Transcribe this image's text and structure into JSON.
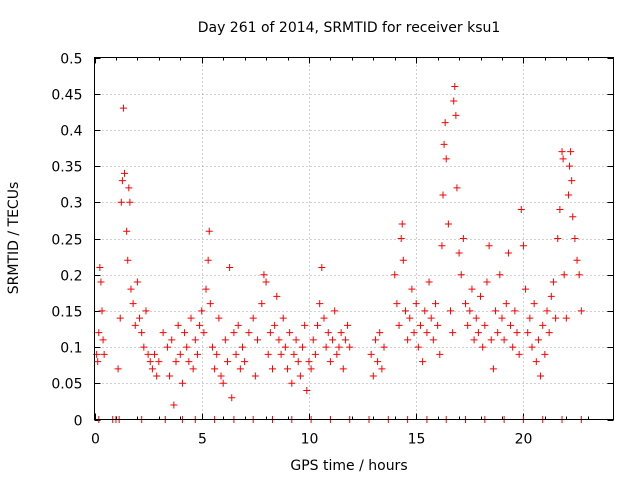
{
  "chart_data": {
    "type": "scatter",
    "title": "Day 261 of 2014, SRMTID for receiver ksu1",
    "xlabel": "GPS time / hours",
    "ylabel": "SRMTID / TECUs",
    "xlim": [
      0,
      24.2
    ],
    "ylim": [
      0,
      0.5
    ],
    "x_ticks": [
      "0",
      "5",
      "10",
      "15",
      "20"
    ],
    "y_ticks": [
      "0",
      "0.05",
      "0.1",
      "0.15",
      "0.2",
      "0.25",
      "0.3",
      "0.35",
      "0.4",
      "0.45",
      "0.5"
    ],
    "grid": true,
    "marker": "+",
    "color": "#ff0000",
    "series": [
      {
        "name": "SRMTID ksu1",
        "points": [
          [
            0.1,
            0.09
          ],
          [
            0.15,
            0.08
          ],
          [
            0.2,
            0.12
          ],
          [
            0.25,
            0.21
          ],
          [
            0.3,
            0.19
          ],
          [
            0.35,
            0.15
          ],
          [
            0.4,
            0.11
          ],
          [
            0.45,
            0.09
          ],
          [
            0.85,
            0.0
          ],
          [
            1.0,
            0.0
          ],
          [
            1.1,
            0.07
          ],
          [
            1.2,
            0.14
          ],
          [
            1.25,
            0.3
          ],
          [
            1.3,
            0.33
          ],
          [
            1.35,
            0.43
          ],
          [
            1.4,
            0.34
          ],
          [
            1.5,
            0.26
          ],
          [
            1.55,
            0.22
          ],
          [
            1.6,
            0.32
          ],
          [
            1.65,
            0.3
          ],
          [
            1.7,
            0.18
          ],
          [
            1.8,
            0.16
          ],
          [
            1.9,
            0.13
          ],
          [
            2.0,
            0.19
          ],
          [
            2.1,
            0.14
          ],
          [
            2.2,
            0.12
          ],
          [
            2.3,
            0.1
          ],
          [
            2.4,
            0.15
          ],
          [
            2.5,
            0.09
          ],
          [
            2.6,
            0.08
          ],
          [
            2.7,
            0.07
          ],
          [
            2.8,
            0.09
          ],
          [
            2.9,
            0.06
          ],
          [
            3.0,
            0.08
          ],
          [
            3.2,
            0.12
          ],
          [
            3.4,
            0.1
          ],
          [
            3.5,
            0.06
          ],
          [
            3.6,
            0.11
          ],
          [
            3.7,
            0.02
          ],
          [
            3.8,
            0.08
          ],
          [
            3.9,
            0.13
          ],
          [
            4.0,
            0.09
          ],
          [
            4.1,
            0.05
          ],
          [
            4.2,
            0.12
          ],
          [
            4.3,
            0.1
          ],
          [
            4.4,
            0.08
          ],
          [
            4.5,
            0.14
          ],
          [
            4.6,
            0.07
          ],
          [
            4.7,
            0.11
          ],
          [
            4.8,
            0.09
          ],
          [
            4.9,
            0.13
          ],
          [
            5.0,
            0.15
          ],
          [
            5.1,
            0.12
          ],
          [
            5.2,
            0.18
          ],
          [
            5.3,
            0.22
          ],
          [
            5.35,
            0.26
          ],
          [
            5.4,
            0.16
          ],
          [
            5.5,
            0.1
          ],
          [
            5.6,
            0.07
          ],
          [
            5.7,
            0.09
          ],
          [
            5.8,
            0.14
          ],
          [
            5.9,
            0.06
          ],
          [
            6.0,
            0.05
          ],
          [
            6.1,
            0.11
          ],
          [
            6.2,
            0.08
          ],
          [
            6.3,
            0.21
          ],
          [
            6.4,
            0.03
          ],
          [
            6.5,
            0.12
          ],
          [
            6.6,
            0.09
          ],
          [
            6.7,
            0.13
          ],
          [
            6.8,
            0.07
          ],
          [
            6.9,
            0.1
          ],
          [
            7.0,
            0.08
          ],
          [
            7.2,
            0.12
          ],
          [
            7.4,
            0.14
          ],
          [
            7.5,
            0.06
          ],
          [
            7.6,
            0.11
          ],
          [
            7.8,
            0.16
          ],
          [
            7.9,
            0.2
          ],
          [
            8.0,
            0.19
          ],
          [
            8.1,
            0.09
          ],
          [
            8.2,
            0.12
          ],
          [
            8.3,
            0.07
          ],
          [
            8.4,
            0.13
          ],
          [
            8.5,
            0.17
          ],
          [
            8.6,
            0.11
          ],
          [
            8.7,
            0.09
          ],
          [
            8.8,
            0.14
          ],
          [
            8.9,
            0.1
          ],
          [
            9.0,
            0.07
          ],
          [
            9.1,
            0.12
          ],
          [
            9.2,
            0.05
          ],
          [
            9.3,
            0.09
          ],
          [
            9.4,
            0.11
          ],
          [
            9.5,
            0.08
          ],
          [
            9.6,
            0.06
          ],
          [
            9.7,
            0.1
          ],
          [
            9.8,
            0.13
          ],
          [
            9.9,
            0.04
          ],
          [
            10.0,
            0.08
          ],
          [
            10.1,
            0.07
          ],
          [
            10.2,
            0.11
          ],
          [
            10.3,
            0.09
          ],
          [
            10.4,
            0.13
          ],
          [
            10.5,
            0.16
          ],
          [
            10.6,
            0.21
          ],
          [
            10.7,
            0.14
          ],
          [
            10.8,
            0.1
          ],
          [
            10.9,
            0.12
          ],
          [
            11.0,
            0.08
          ],
          [
            11.1,
            0.11
          ],
          [
            11.2,
            0.15
          ],
          [
            11.3,
            0.09
          ],
          [
            11.4,
            0.1
          ],
          [
            11.5,
            0.12
          ],
          [
            11.6,
            0.07
          ],
          [
            11.7,
            0.11
          ],
          [
            11.8,
            0.13
          ],
          [
            11.9,
            0.1
          ],
          [
            12.9,
            0.09
          ],
          [
            13.0,
            0.06
          ],
          [
            13.1,
            0.11
          ],
          [
            13.2,
            0.08
          ],
          [
            13.3,
            0.12
          ],
          [
            13.4,
            0.07
          ],
          [
            13.5,
            0.1
          ],
          [
            14.0,
            0.2
          ],
          [
            14.1,
            0.16
          ],
          [
            14.2,
            0.13
          ],
          [
            14.3,
            0.25
          ],
          [
            14.35,
            0.27
          ],
          [
            14.4,
            0.22
          ],
          [
            14.5,
            0.15
          ],
          [
            14.6,
            0.11
          ],
          [
            14.7,
            0.14
          ],
          [
            14.8,
            0.18
          ],
          [
            14.9,
            0.12
          ],
          [
            15.0,
            0.16
          ],
          [
            15.1,
            0.1
          ],
          [
            15.2,
            0.13
          ],
          [
            15.3,
            0.08
          ],
          [
            15.4,
            0.15
          ],
          [
            15.5,
            0.12
          ],
          [
            15.6,
            0.19
          ],
          [
            15.7,
            0.14
          ],
          [
            15.8,
            0.11
          ],
          [
            15.9,
            0.16
          ],
          [
            16.0,
            0.13
          ],
          [
            16.1,
            0.09
          ],
          [
            16.2,
            0.24
          ],
          [
            16.25,
            0.31
          ],
          [
            16.3,
            0.38
          ],
          [
            16.35,
            0.41
          ],
          [
            16.4,
            0.36
          ],
          [
            16.5,
            0.27
          ],
          [
            16.6,
            0.15
          ],
          [
            16.7,
            0.12
          ],
          [
            16.75,
            0.44
          ],
          [
            16.8,
            0.46
          ],
          [
            16.85,
            0.42
          ],
          [
            16.9,
            0.32
          ],
          [
            17.0,
            0.23
          ],
          [
            17.1,
            0.2
          ],
          [
            17.2,
            0.25
          ],
          [
            17.3,
            0.16
          ],
          [
            17.4,
            0.13
          ],
          [
            17.5,
            0.15
          ],
          [
            17.6,
            0.18
          ],
          [
            17.7,
            0.11
          ],
          [
            17.8,
            0.14
          ],
          [
            17.9,
            0.12
          ],
          [
            18.0,
            0.17
          ],
          [
            18.1,
            0.1
          ],
          [
            18.2,
            0.13
          ],
          [
            18.3,
            0.19
          ],
          [
            18.4,
            0.24
          ],
          [
            18.5,
            0.11
          ],
          [
            18.6,
            0.07
          ],
          [
            18.7,
            0.15
          ],
          [
            18.8,
            0.12
          ],
          [
            18.9,
            0.2
          ],
          [
            19.0,
            0.14
          ],
          [
            19.1,
            0.11
          ],
          [
            19.2,
            0.16
          ],
          [
            19.3,
            0.23
          ],
          [
            19.4,
            0.13
          ],
          [
            19.5,
            0.1
          ],
          [
            19.6,
            0.15
          ],
          [
            19.7,
            0.12
          ],
          [
            19.8,
            0.09
          ],
          [
            19.9,
            0.29
          ],
          [
            20.0,
            0.24
          ],
          [
            20.1,
            0.18
          ],
          [
            20.2,
            0.12
          ],
          [
            20.3,
            0.14
          ],
          [
            20.4,
            0.1
          ],
          [
            20.5,
            0.16
          ],
          [
            20.6,
            0.08
          ],
          [
            20.7,
            0.11
          ],
          [
            20.8,
            0.06
          ],
          [
            20.9,
            0.13
          ],
          [
            21.0,
            0.09
          ],
          [
            21.1,
            0.15
          ],
          [
            21.2,
            0.12
          ],
          [
            21.3,
            0.17
          ],
          [
            21.4,
            0.19
          ],
          [
            21.5,
            0.14
          ],
          [
            21.6,
            0.25
          ],
          [
            21.7,
            0.29
          ],
          [
            21.8,
            0.37
          ],
          [
            21.85,
            0.36
          ],
          [
            21.9,
            0.2
          ],
          [
            22.0,
            0.14
          ],
          [
            22.1,
            0.31
          ],
          [
            22.15,
            0.35
          ],
          [
            22.2,
            0.37
          ],
          [
            22.25,
            0.33
          ],
          [
            22.3,
            0.28
          ],
          [
            22.4,
            0.25
          ],
          [
            22.5,
            0.22
          ],
          [
            22.6,
            0.2
          ],
          [
            22.7,
            0.15
          ],
          [
            0.2,
            0.0
          ],
          [
            1.15,
            0.0
          ],
          [
            2.2,
            0.0
          ],
          [
            3.3,
            0.0
          ],
          [
            4.1,
            0.0
          ],
          [
            4.7,
            0.0
          ],
          [
            5.6,
            0.0
          ],
          [
            6.5,
            0.0
          ],
          [
            7.4,
            0.0
          ],
          [
            8.3,
            0.0
          ],
          [
            9.2,
            0.0
          ],
          [
            10.1,
            0.0
          ],
          [
            11.0,
            0.0
          ],
          [
            11.9,
            0.0
          ],
          [
            12.8,
            0.0
          ],
          [
            13.7,
            0.0
          ],
          [
            14.6,
            0.0
          ],
          [
            15.5,
            0.0
          ],
          [
            16.4,
            0.0
          ],
          [
            17.3,
            0.0
          ],
          [
            18.2,
            0.0
          ],
          [
            19.1,
            0.0
          ],
          [
            20.0,
            0.0
          ],
          [
            20.9,
            0.0
          ],
          [
            21.8,
            0.0
          ],
          [
            22.7,
            0.0
          ]
        ]
      }
    ]
  }
}
